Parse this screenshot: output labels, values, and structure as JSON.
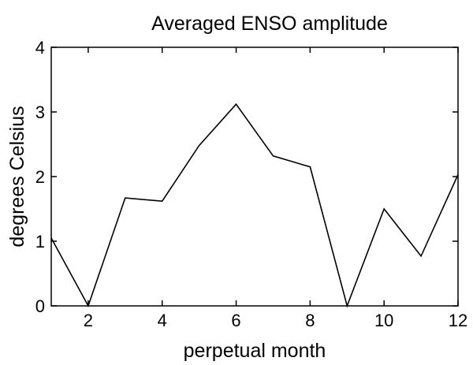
{
  "chart_data": {
    "type": "line",
    "title": "Averaged ENSO amplitude",
    "xlabel": "perpetual month",
    "ylabel": "degrees Celsius",
    "xlim": [
      1,
      12
    ],
    "ylim": [
      0,
      4
    ],
    "xticks": [
      2,
      4,
      6,
      8,
      10,
      12
    ],
    "yticks": [
      0,
      1,
      2,
      3,
      4
    ],
    "grid": false,
    "legend": "none",
    "series": [
      {
        "x": [
          1,
          2,
          3,
          4,
          5,
          6,
          7,
          8,
          9,
          10,
          11,
          12
        ],
        "values": [
          1.05,
          0.0,
          1.67,
          1.62,
          2.48,
          3.12,
          2.32,
          2.15,
          0.0,
          1.5,
          0.77,
          2.03
        ],
        "color": "#000000"
      }
    ]
  }
}
